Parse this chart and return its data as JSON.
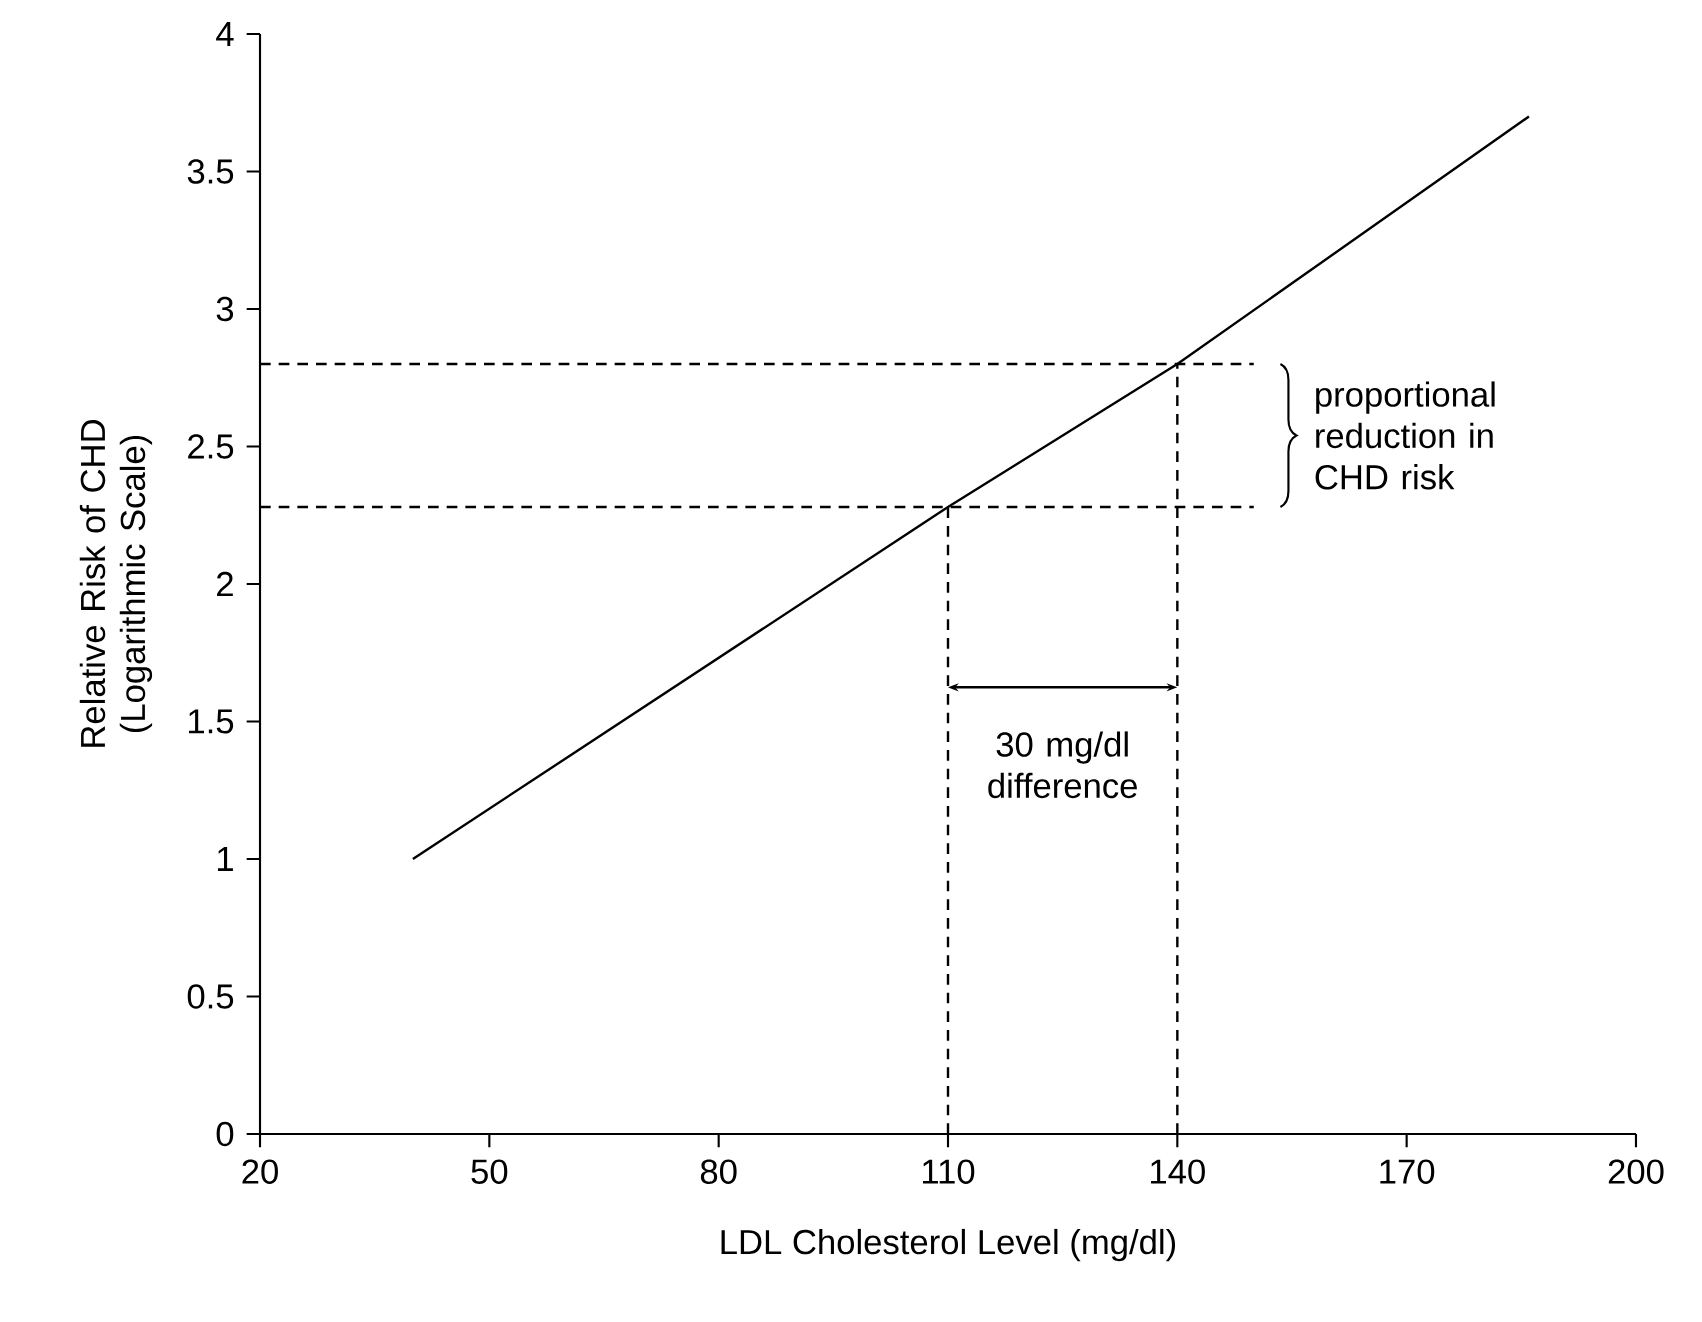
{
  "chart_data": {
    "type": "line",
    "xlabel": "LDL Cholesterol Level (mg/dl)",
    "ylabel": "Relative Risk of CHD (Logarithmic Scale)",
    "xlim": [
      20,
      200
    ],
    "xticks": [
      20,
      50,
      80,
      110,
      140,
      170,
      200
    ],
    "ylim": [
      0,
      4
    ],
    "yticks": [
      0,
      0.5,
      1,
      1.5,
      2,
      2.5,
      3,
      3.5,
      4
    ],
    "grid": false,
    "series": [
      {
        "color": "#000000",
        "x": [
          40,
          110,
          140,
          186
        ],
        "values": [
          1,
          2.28,
          2.8,
          3.7
        ],
        "line_style": "solid"
      },
      {
        "color": "#000000",
        "x": [
          20,
          150
        ],
        "values": [
          2.28,
          2.28
        ],
        "line_style": "dashed"
      },
      {
        "color": "#000000",
        "x": [
          20,
          150
        ],
        "values": [
          2.8,
          2.8
        ],
        "line_style": "dashed"
      },
      {
        "color": "#000000",
        "x": [
          110,
          110
        ],
        "values": [
          0,
          2.28
        ],
        "line_style": "dashed"
      },
      {
        "color": "#000000",
        "x": [
          140,
          140
        ],
        "values": [
          0,
          2.8
        ],
        "line_style": "dashed"
      }
    ],
    "annotations": [
      "30 mg/dl difference",
      "proportional reduction in CHD risk"
    ]
  }
}
